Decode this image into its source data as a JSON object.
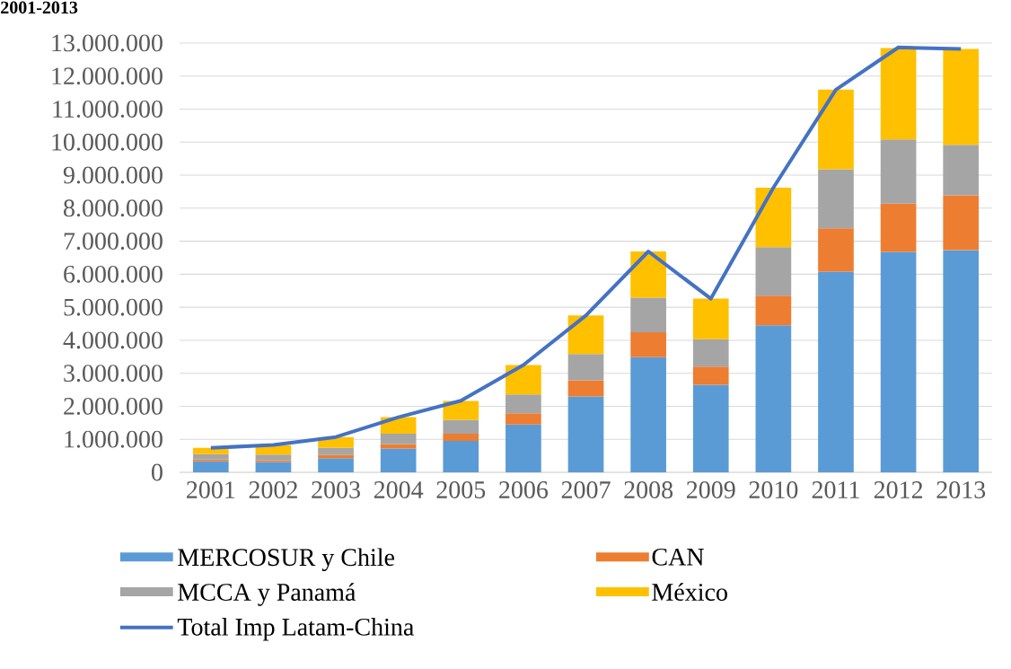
{
  "chart_data": {
    "type": "bar",
    "title": "2001-2013",
    "stacked": true,
    "grid": "y",
    "legend": "bottom",
    "categories": [
      "2001",
      "2002",
      "2003",
      "2004",
      "2005",
      "2006",
      "2007",
      "2008",
      "2009",
      "2010",
      "2011",
      "2012",
      "2013"
    ],
    "ylim": [
      0,
      13000000
    ],
    "yticks": [
      0,
      {
        "value": 1000000,
        "label": "1.000.000"
      },
      {
        "value": 2000000,
        "label": "2.000.000"
      },
      {
        "value": 3000000,
        "label": "3.000.000"
      },
      {
        "value": 4000000,
        "label": "4.000.000"
      },
      {
        "value": 5000000,
        "label": "5.000.000"
      },
      {
        "value": 6000000,
        "label": "6.000.000"
      },
      {
        "value": 7000000,
        "label": "7.000.000"
      },
      {
        "value": 8000000,
        "label": "8.000.000"
      },
      {
        "value": 9000000,
        "label": "9.000.000"
      },
      {
        "value": 10000000,
        "label": "10.000.000"
      },
      {
        "value": 11000000,
        "label": "11.000.000"
      },
      {
        "value": 12000000,
        "label": "12.000.000"
      },
      {
        "value": 13000000,
        "label": "13.000.000"
      }
    ],
    "series": [
      {
        "name": "MERCOSUR y Chile",
        "color": "#5b9bd5",
        "values": [
          330000,
          310000,
          430000,
          720000,
          950000,
          1450000,
          2300000,
          3490000,
          2650000,
          4450000,
          6080000,
          6680000,
          6730000
        ]
      },
      {
        "name": "CAN",
        "color": "#ed7d31",
        "values": [
          60000,
          60000,
          100000,
          140000,
          220000,
          340000,
          490000,
          750000,
          550000,
          900000,
          1310000,
          1460000,
          1660000
        ]
      },
      {
        "name": "MCCA y Panamá",
        "color": "#a5a5a5",
        "values": [
          160000,
          170000,
          210000,
          310000,
          420000,
          570000,
          790000,
          1050000,
          830000,
          1470000,
          1790000,
          1940000,
          1530000
        ]
      },
      {
        "name": "México",
        "color": "#ffc000",
        "values": [
          190000,
          280000,
          330000,
          500000,
          570000,
          890000,
          1170000,
          1400000,
          1230000,
          1800000,
          2410000,
          2770000,
          2900000
        ]
      },
      {
        "name": "Total Imp Latam-China",
        "type": "line",
        "color": "#4472c4",
        "values": [
          740000,
          830000,
          1070000,
          1670000,
          2170000,
          3250000,
          4750000,
          6690000,
          5260000,
          8620000,
          11590000,
          12870000,
          12820000
        ]
      }
    ]
  }
}
